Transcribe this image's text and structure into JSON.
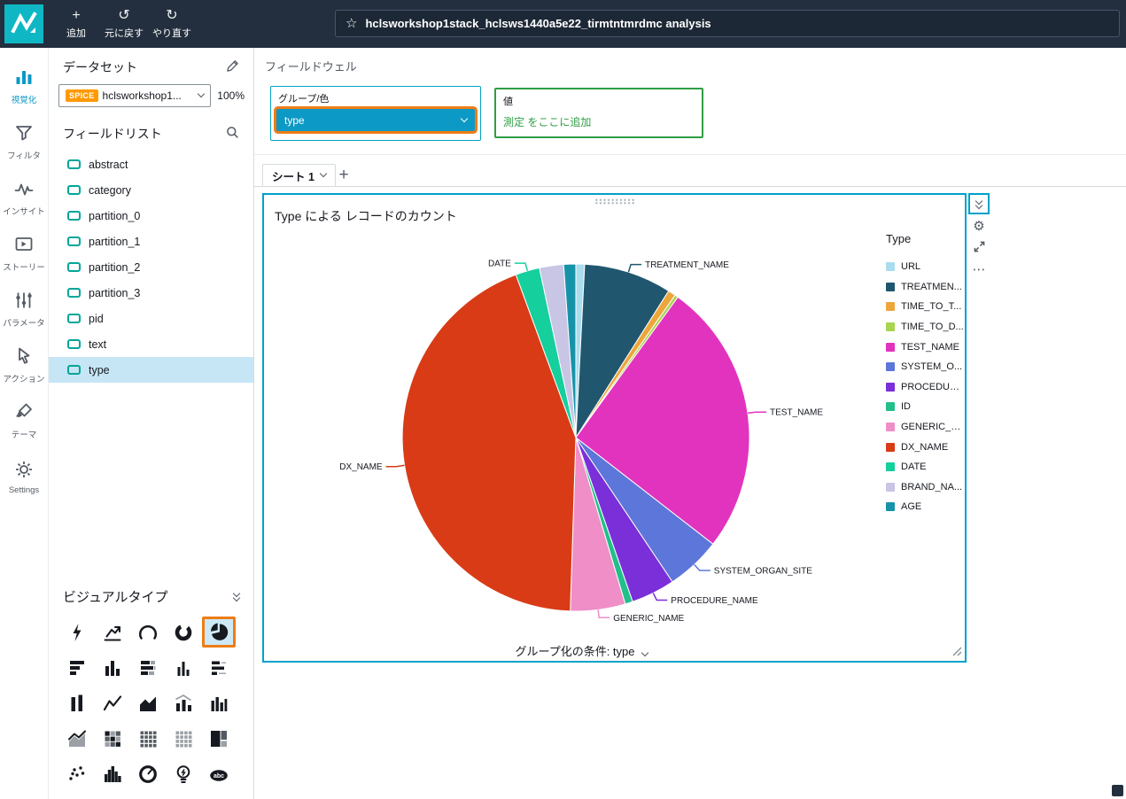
{
  "icons": {
    "plus": "+",
    "undo": "↺",
    "redo": "↻",
    "star": "☆",
    "gear": "⚙",
    "ellipsis": "⋯"
  },
  "topbar": {
    "add_label": "追加",
    "undo_label": "元に戻す",
    "redo_label": "やり直す",
    "analysis_title": "hclsworkshop1stack_hclsws1440a5e22_tirmtntmrdmc analysis"
  },
  "sidebar": {
    "items": [
      {
        "key": "visualize",
        "label": "視覚化",
        "icon": "bar-chart-icon",
        "active": true
      },
      {
        "key": "filter",
        "label": "フィルタ",
        "icon": "filter-icon",
        "active": false
      },
      {
        "key": "insights",
        "label": "インサイト",
        "icon": "insights-icon",
        "active": false
      },
      {
        "key": "story",
        "label": "ストーリー",
        "icon": "story-icon",
        "active": false
      },
      {
        "key": "parameters",
        "label": "パラメータ",
        "icon": "parameters-icon",
        "active": false
      },
      {
        "key": "actions",
        "label": "アクション",
        "icon": "actions-icon",
        "active": false
      },
      {
        "key": "themes",
        "label": "テーマ",
        "icon": "themes-icon",
        "active": false
      },
      {
        "key": "settings",
        "label": "Settings",
        "icon": "settings-icon",
        "active": false
      }
    ]
  },
  "dataset_panel": {
    "title": "データセット",
    "spice_badge": "SPICE",
    "dataset_name": "hclsworkshop1...",
    "spice_capacity": "100%",
    "field_list_title": "フィールドリスト",
    "fields": [
      "abstract",
      "category",
      "partition_0",
      "partition_1",
      "partition_2",
      "partition_3",
      "pid",
      "text",
      "type"
    ],
    "selected_field": "type",
    "visual_types_title": "ビジュアルタイプ",
    "visual_types": [
      "auto-graph",
      "kpi",
      "gauge",
      "donut",
      "pie",
      "horizontal-bar",
      "vertical-bar",
      "stacked-horizontal-bar",
      "small-vertical-bar",
      "horizontal-bar-list",
      "paired-bar",
      "line-chart",
      "area-chart",
      "bar-line-combo",
      "clustered-bar",
      "line-area",
      "heatmap",
      "pivot-table",
      "table",
      "treemap",
      "scatter-plot",
      "histogram",
      "donut-gauge",
      "insights",
      "word-cloud"
    ],
    "selected_visual_type": "pie"
  },
  "field_wells": {
    "title": "フィールドウェル",
    "group_color": {
      "label": "グループ/色",
      "value": "type"
    },
    "value_well": {
      "label": "値",
      "placeholder": "測定 をここに追加"
    }
  },
  "sheet": {
    "tab_label": "シート 1"
  },
  "visual": {
    "title": "Type による レコードのカウント",
    "legend_title": "Type",
    "group_by_label": "グループ化の条件: type"
  },
  "chart_data": {
    "type": "pie",
    "title": "Type による レコードのカウント",
    "legend_title": "Type",
    "legend_position": "right",
    "values_are": "estimated percent of records, read from arc angles",
    "slices": [
      {
        "label": "URL",
        "legend_label": "URL",
        "value": 0.8,
        "color": "#a9ddee",
        "callout": false
      },
      {
        "label": "TREATMENT_NAME",
        "legend_label": "TREATMEN...",
        "value": 8.0,
        "color": "#20576f",
        "callout": true
      },
      {
        "label": "TIME_TO_T...",
        "legend_label": "TIME_TO_T...",
        "value": 0.7,
        "color": "#eda63c",
        "callout": false
      },
      {
        "label": "TIME_TO_D...",
        "legend_label": "TIME_TO_D...",
        "value": 0.3,
        "color": "#a8d44f",
        "callout": false
      },
      {
        "label": "TEST_NAME",
        "legend_label": "TEST_NAME",
        "value": 25.0,
        "color": "#e233bf",
        "callout": true
      },
      {
        "label": "SYSTEM_ORGAN_SITE",
        "legend_label": "SYSTEM_O...",
        "value": 5.0,
        "color": "#5d76d9",
        "callout": true
      },
      {
        "label": "PROCEDURE_NAME",
        "legend_label": "PROCEDUR...",
        "value": 4.0,
        "color": "#7a2fd9",
        "callout": true
      },
      {
        "label": "ID",
        "legend_label": "ID",
        "value": 0.7,
        "color": "#22bf8b",
        "callout": false
      },
      {
        "label": "GENERIC_NAME",
        "legend_label": "GENERIC_N...",
        "value": 5.0,
        "color": "#ef8ec7",
        "callout": true
      },
      {
        "label": "DX_NAME",
        "legend_label": "DX_NAME",
        "value": 43.0,
        "color": "#d93b17",
        "callout": true
      },
      {
        "label": "DATE",
        "legend_label": "DATE",
        "value": 2.2,
        "color": "#15cf9d",
        "callout": true
      },
      {
        "label": "BRAND_NA...",
        "legend_label": "BRAND_NA...",
        "value": 2.2,
        "color": "#c9c5e5",
        "callout": false
      },
      {
        "label": "AGE",
        "legend_label": "AGE",
        "value": 1.1,
        "color": "#1793a9",
        "callout": false
      }
    ]
  }
}
